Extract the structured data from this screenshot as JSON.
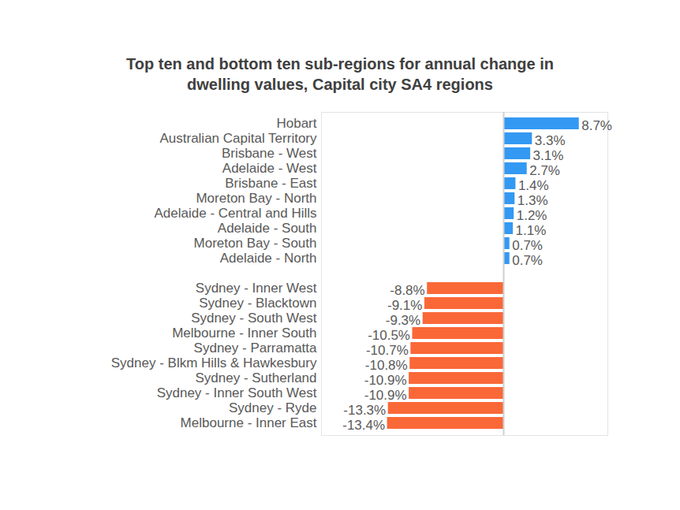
{
  "chart_data": {
    "type": "bar",
    "title": "Top ten and bottom ten sub-regions for annual change in dwelling values, Capital city SA4 regions",
    "orientation": "horizontal",
    "categories": [
      "Hobart",
      "Australian Capital Territory",
      "Brisbane - West",
      "Adelaide - West",
      "Brisbane - East",
      "Moreton Bay - North",
      "Adelaide - Central and Hills",
      "Adelaide - South",
      "Moreton Bay - South",
      "Adelaide - North",
      null,
      "Sydney - Inner West",
      "Sydney - Blacktown",
      "Sydney - South West",
      "Melbourne - Inner South",
      "Sydney - Parramatta",
      "Sydney - Blkm Hills & Hawkesbury",
      "Sydney - Sutherland",
      "Sydney - Inner South West",
      "Sydney - Ryde",
      "Melbourne - Inner East"
    ],
    "values": [
      8.7,
      3.3,
      3.1,
      2.7,
      1.4,
      1.3,
      1.2,
      1.1,
      0.7,
      0.7,
      null,
      -8.8,
      -9.1,
      -9.3,
      -10.5,
      -10.7,
      -10.8,
      -10.9,
      -10.9,
      -13.3,
      -13.4
    ],
    "value_labels": [
      "8.7%",
      "3.3%",
      "3.1%",
      "2.7%",
      "1.4%",
      "1.3%",
      "1.2%",
      "1.1%",
      "0.7%",
      "0.7%",
      null,
      "-8.8%",
      "-9.1%",
      "-9.3%",
      "-10.5%",
      "-10.7%",
      "-10.8%",
      "-10.9%",
      "-10.9%",
      "-13.3%",
      "-13.4%"
    ],
    "colors": [
      "#3399f3",
      "#3399f3",
      "#3399f3",
      "#3399f3",
      "#3399f3",
      "#3399f3",
      "#3399f3",
      "#3399f3",
      "#3399f3",
      "#3399f3",
      null,
      "#fa6838",
      "#fa6838",
      "#fa6838",
      "#fa6838",
      "#fa6838",
      "#fa6838",
      "#fa6838",
      "#fa6838",
      "#fa6838",
      "#fa6838"
    ],
    "xlim": [
      -21,
      12
    ],
    "xticks": [
      0
    ],
    "data_labels": true,
    "tick_labels": "y",
    "grid": false
  }
}
